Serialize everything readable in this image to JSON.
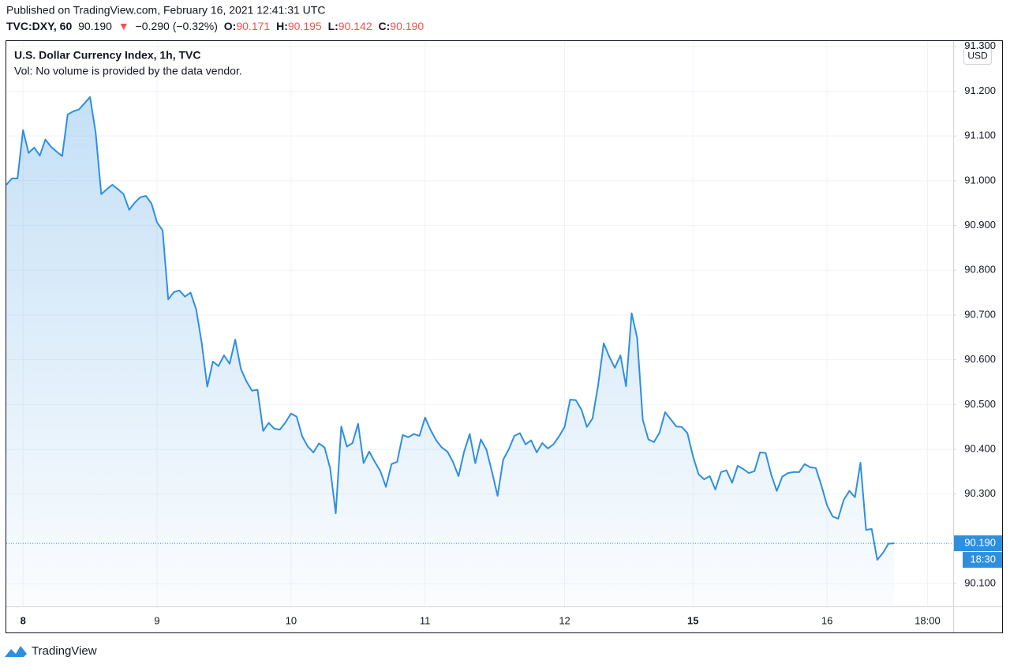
{
  "header": {
    "published": "Published on TradingView.com, February 16, 2021 12:41:31 UTC",
    "symbol": "TVC:DXY, 60",
    "last": "90.190",
    "arrow": "▼",
    "change": "−0.290 (−0.32%)",
    "o_label": "O:",
    "o": "90.171",
    "h_label": "H:",
    "h": "90.195",
    "l_label": "L:",
    "l": "90.142",
    "c_label": "C:",
    "c": "90.190"
  },
  "chart_data": {
    "type": "area",
    "title": "U.S. Dollar Currency Index, 1h, TVC",
    "subtitle": "Vol: No volume is provided by the data vendor.",
    "y_unit": "USD",
    "color": "#2f8fdf",
    "grid": true,
    "categories": [
      null,
      null,
      null,
      "8",
      null,
      null,
      null,
      null,
      null,
      null,
      null,
      null,
      null,
      null,
      null,
      null,
      null,
      null,
      null,
      null,
      null,
      null,
      null,
      null,
      null,
      null,
      null,
      "9",
      null,
      null,
      null,
      null,
      null,
      null,
      null,
      null,
      null,
      null,
      null,
      null,
      null,
      null,
      null,
      null,
      null,
      null,
      null,
      null,
      null,
      null,
      null,
      "10",
      null,
      null,
      null,
      null,
      null,
      null,
      null,
      null,
      null,
      null,
      null,
      null,
      null,
      null,
      null,
      null,
      null,
      null,
      null,
      null,
      null,
      null,
      null,
      "11",
      null,
      null,
      null,
      null,
      null,
      null,
      null,
      null,
      null,
      null,
      null,
      null,
      null,
      null,
      null,
      null,
      null,
      null,
      null,
      null,
      null,
      null,
      null,
      null,
      "12",
      null,
      null,
      null,
      null,
      null,
      null,
      null,
      null,
      null,
      null,
      null,
      null,
      null,
      null,
      null,
      null,
      null,
      null,
      null,
      null,
      null,
      null,
      "15",
      null,
      null,
      null,
      null,
      null,
      null,
      null,
      null,
      null,
      null,
      null,
      null,
      null,
      null,
      null,
      null,
      null,
      null,
      null,
      null,
      null,
      null,
      null,
      "16",
      null,
      null,
      null,
      null,
      null,
      null,
      null,
      null,
      null,
      null,
      null,
      null,
      null,
      null,
      null,
      null,
      null,
      "18:00"
    ],
    "bold_categories": [
      "8",
      "15"
    ],
    "values": [
      90.991,
      91.005,
      91.005,
      91.113,
      91.062,
      91.074,
      91.056,
      91.092,
      91.076,
      91.065,
      91.055,
      91.148,
      91.155,
      91.159,
      91.173,
      91.187,
      91.108,
      90.97,
      90.981,
      90.991,
      90.981,
      90.97,
      90.935,
      90.951,
      90.963,
      90.966,
      90.949,
      90.907,
      90.889,
      90.735,
      90.751,
      90.755,
      90.741,
      90.75,
      90.713,
      90.638,
      90.54,
      90.596,
      90.586,
      90.61,
      90.591,
      90.645,
      90.58,
      90.552,
      90.531,
      90.533,
      90.441,
      90.459,
      90.446,
      90.444,
      90.46,
      90.48,
      90.473,
      90.429,
      90.406,
      90.393,
      90.413,
      90.404,
      90.358,
      90.257,
      90.451,
      90.406,
      90.414,
      90.457,
      90.369,
      90.395,
      90.372,
      90.351,
      90.316,
      90.367,
      90.372,
      90.432,
      90.427,
      90.434,
      90.43,
      90.471,
      90.443,
      90.42,
      90.404,
      90.395,
      90.372,
      90.34,
      90.395,
      90.434,
      90.369,
      90.422,
      90.399,
      90.349,
      90.296,
      90.377,
      90.4,
      90.43,
      90.436,
      90.411,
      90.42,
      90.393,
      90.414,
      90.402,
      90.411,
      90.429,
      90.45,
      90.511,
      90.51,
      90.489,
      90.45,
      90.469,
      90.543,
      90.637,
      90.607,
      90.582,
      90.61,
      90.541,
      90.704,
      90.649,
      90.466,
      90.422,
      90.416,
      90.437,
      90.483,
      90.467,
      90.451,
      90.45,
      90.436,
      90.384,
      90.344,
      90.333,
      90.34,
      90.31,
      90.349,
      90.353,
      90.325,
      90.363,
      90.356,
      90.347,
      90.351,
      90.393,
      90.392,
      90.344,
      90.307,
      90.339,
      90.347,
      90.349,
      90.349,
      90.367,
      90.36,
      90.358,
      90.319,
      90.275,
      90.25,
      90.245,
      90.287,
      90.307,
      90.293,
      90.37,
      90.22,
      90.222,
      90.153,
      90.168,
      90.189,
      90.19,
      null,
      null,
      null,
      null,
      null,
      null
    ],
    "ylim": [
      90.049,
      91.312
    ],
    "yticks": [
      {
        "value": 90.1,
        "label": "90.100"
      },
      {
        "value": 90.3,
        "label": "90.300"
      },
      {
        "value": 90.4,
        "label": "90.400"
      },
      {
        "value": 90.5,
        "label": "90.500"
      },
      {
        "value": 90.6,
        "label": "90.600"
      },
      {
        "value": 90.7,
        "label": "90.700"
      },
      {
        "value": 90.8,
        "label": "90.800"
      },
      {
        "value": 90.9,
        "label": "90.900"
      },
      {
        "value": 91.0,
        "label": "91.000"
      },
      {
        "value": 91.1,
        "label": "91.100"
      },
      {
        "value": 91.2,
        "label": "91.200"
      },
      {
        "value": 91.3,
        "label": "91.300"
      }
    ],
    "price_line": {
      "value": 90.19,
      "label": "90.190"
    },
    "countdown": "18:30"
  },
  "footer": {
    "brand": "TradingView"
  }
}
